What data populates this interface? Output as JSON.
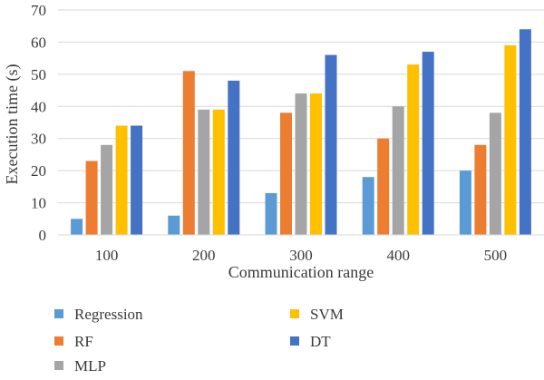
{
  "chart_data": {
    "type": "bar",
    "title": "",
    "xlabel": "Communication range",
    "ylabel": "Execution time (s)",
    "categories": [
      "100",
      "200",
      "300",
      "400",
      "500"
    ],
    "ylim": [
      0,
      70
    ],
    "yticks": [
      "0",
      "10",
      "20",
      "30",
      "40",
      "50",
      "60",
      "70"
    ],
    "grid": true,
    "legend_position": "bottom",
    "series": [
      {
        "name": "Regression",
        "color": "#5B9BD5",
        "values": [
          5,
          6,
          13,
          18,
          20
        ]
      },
      {
        "name": "RF",
        "color": "#ED7D31",
        "values": [
          23,
          51,
          38,
          30,
          28
        ]
      },
      {
        "name": "MLP",
        "color": "#A5A5A5",
        "values": [
          28,
          39,
          44,
          40,
          38
        ]
      },
      {
        "name": "SVM",
        "color": "#FFC000",
        "values": [
          34,
          39,
          44,
          53,
          59
        ]
      },
      {
        "name": "DT",
        "color": "#4472C4",
        "values": [
          34,
          48,
          56,
          57,
          64
        ]
      }
    ]
  }
}
